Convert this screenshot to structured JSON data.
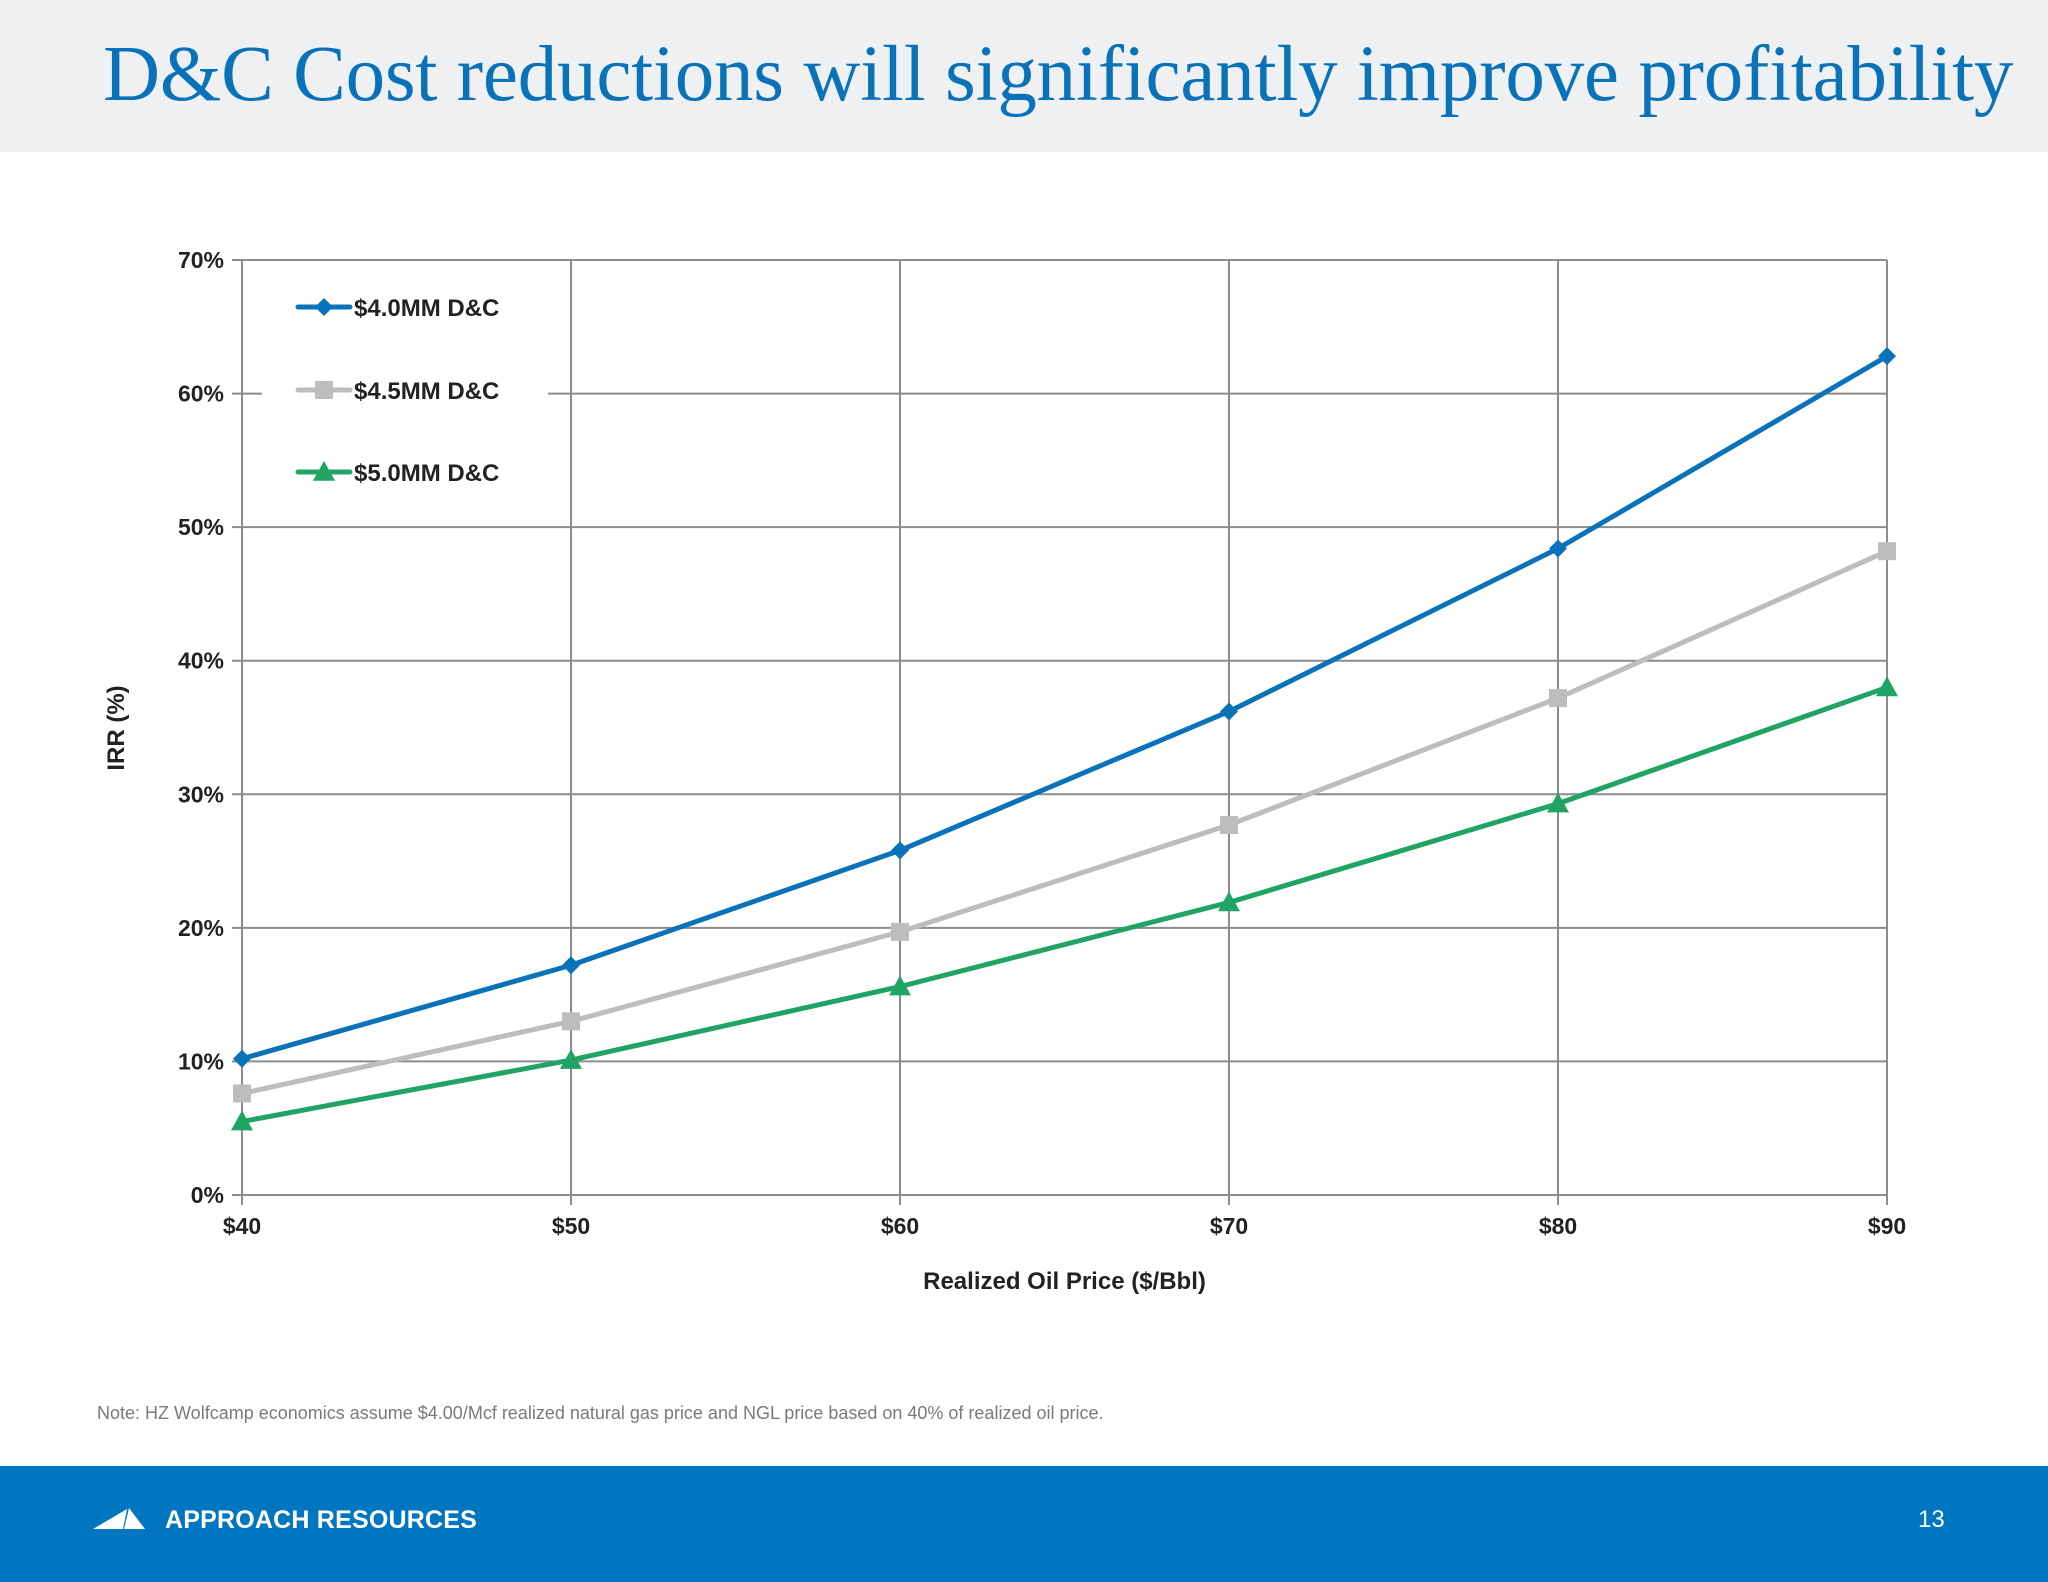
{
  "slide": {
    "title": "D&C Cost reductions will significantly improve profitability",
    "note": "Note: HZ Wolfcamp economics assume $4.00/Mcf realized natural gas price and NGL price based on 40% of realized oil price.",
    "footer": {
      "brand": "APPROACH RESOURCES",
      "logo_icon": "approach-resources-logo-icon",
      "page_number": "13"
    },
    "colors": {
      "title": "#0a72b8",
      "footer_bg": "#0076c0",
      "header_bg": "#eff0f2"
    }
  },
  "chart_data": {
    "type": "line",
    "title": "",
    "xlabel": "Realized Oil Price ($/Bbl)",
    "ylabel": "IRR (%)",
    "x": [
      40,
      50,
      60,
      70,
      80,
      90
    ],
    "x_tick_labels": [
      "$40",
      "$50",
      "$60",
      "$70",
      "$80",
      "$90"
    ],
    "y_ticks": [
      0,
      10,
      20,
      30,
      40,
      50,
      60,
      70
    ],
    "y_tick_labels": [
      "0%",
      "10%",
      "20%",
      "30%",
      "40%",
      "50%",
      "60%",
      "70%"
    ],
    "xlim": [
      40,
      90
    ],
    "ylim": [
      0,
      70
    ],
    "grid": true,
    "legend_position": "top-left",
    "series": [
      {
        "name": "$4.0MM D&C",
        "color": "#0a72b8",
        "marker": "diamond",
        "values": [
          10.2,
          17.2,
          25.8,
          36.2,
          48.4,
          62.8
        ]
      },
      {
        "name": "$4.5MM D&C",
        "color": "#bdbdbd",
        "marker": "square",
        "values": [
          7.6,
          13.0,
          19.7,
          27.7,
          37.2,
          48.2
        ]
      },
      {
        "name": "$5.0MM D&C",
        "color": "#1fa463",
        "marker": "triangle",
        "values": [
          5.5,
          10.1,
          15.6,
          21.9,
          29.3,
          38.0
        ]
      }
    ]
  }
}
